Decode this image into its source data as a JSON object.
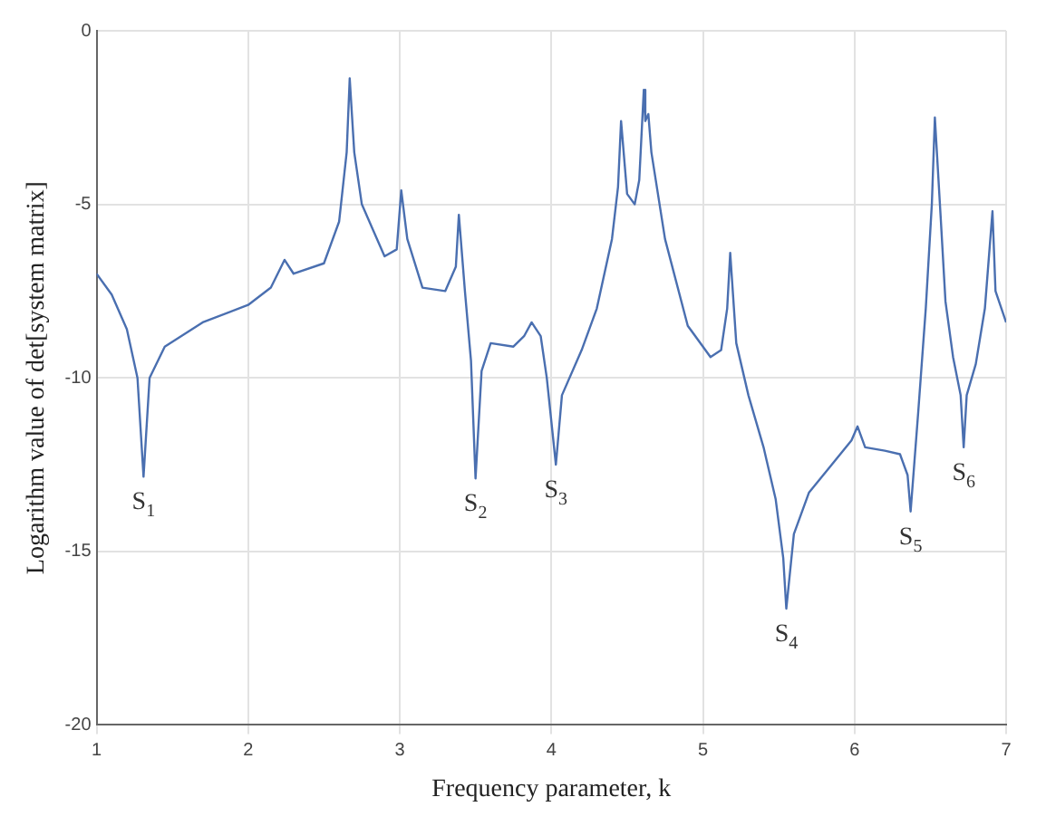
{
  "chart_data": {
    "type": "line",
    "xlabel": "Frequency parameter, k",
    "ylabel": "Logarithm value of det[system matrix]",
    "xlim": [
      1,
      7
    ],
    "xticks": [
      1,
      2,
      3,
      4,
      5,
      6,
      7
    ],
    "ylim": [
      -20,
      0
    ],
    "yticks": [
      -20,
      -15,
      -10,
      -5,
      0
    ],
    "grid": true,
    "legend": false,
    "marker": "none",
    "line_style": "solid",
    "series": [
      {
        "color": "#4a6fb0",
        "x": [
          1.0,
          1.1,
          1.2,
          1.27,
          1.31,
          1.35,
          1.45,
          1.7,
          2.0,
          2.15,
          2.24,
          2.3,
          2.5,
          2.6,
          2.65,
          2.67,
          2.7,
          2.75,
          2.9,
          2.98,
          3.01,
          3.05,
          3.15,
          3.3,
          3.37,
          3.39,
          3.43,
          3.47,
          3.5,
          3.54,
          3.6,
          3.75,
          3.82,
          3.87,
          3.93,
          3.97,
          4.03,
          4.07,
          4.2,
          4.3,
          4.4,
          4.44,
          4.46,
          4.5,
          4.55,
          4.58,
          4.61,
          4.62,
          4.64,
          4.66,
          4.75,
          4.9,
          5.05,
          5.12,
          5.16,
          5.18,
          5.22,
          5.3,
          5.4,
          5.48,
          5.53,
          5.55,
          5.6,
          5.7,
          5.85,
          5.98,
          6.02,
          6.07,
          6.2,
          6.3,
          6.35,
          6.37,
          6.42,
          6.47,
          6.51,
          6.53,
          6.57,
          6.6,
          6.65,
          6.7,
          6.72,
          6.74,
          6.8,
          6.86,
          6.91,
          6.93,
          7.0
        ],
        "values": [
          -7.0,
          -7.6,
          -8.6,
          -10.0,
          -12.85,
          -10.0,
          -9.1,
          -8.4,
          -7.9,
          -7.4,
          -6.6,
          -7.0,
          -6.7,
          -5.5,
          -3.5,
          -1.37,
          -3.5,
          -5.0,
          -6.5,
          -6.3,
          -4.6,
          -6.0,
          -7.4,
          -7.5,
          -6.8,
          -5.3,
          -7.5,
          -9.5,
          -12.9,
          -9.8,
          -9.0,
          -9.1,
          -8.8,
          -8.4,
          -8.8,
          -10.0,
          -12.5,
          -10.5,
          -9.2,
          -8.0,
          -6.0,
          -4.5,
          -2.6,
          -4.7,
          -5.0,
          -4.3,
          -1.7,
          -2.6,
          -2.4,
          -3.5,
          -6.0,
          -8.5,
          -9.4,
          -9.2,
          -8.0,
          -6.4,
          -9.0,
          -10.5,
          -12.0,
          -13.5,
          -15.2,
          -16.65,
          -14.5,
          -13.3,
          -12.5,
          -11.8,
          -11.4,
          -12.0,
          -12.1,
          -12.2,
          -12.8,
          -13.85,
          -11.0,
          -8.0,
          -5.0,
          -2.5,
          -5.5,
          -7.8,
          -9.4,
          -10.5,
          -12.0,
          -10.5,
          -9.6,
          -8.0,
          -5.2,
          -7.5,
          -8.4
        ]
      }
    ],
    "annotations": [
      {
        "text": "S$_{1}$",
        "x": 1.31,
        "y": -12.85
      },
      {
        "text": "S$_{2}$",
        "x": 3.5,
        "y": -12.9
      },
      {
        "text": "S$_{3}$",
        "x": 4.03,
        "y": -12.5
      },
      {
        "text": "S$_{4}$",
        "x": 5.55,
        "y": -16.65
      },
      {
        "text": "S$_{5}$",
        "x": 6.37,
        "y": -13.85
      },
      {
        "text": "S$_{6}$",
        "x": 6.72,
        "y": -12.0
      }
    ]
  }
}
